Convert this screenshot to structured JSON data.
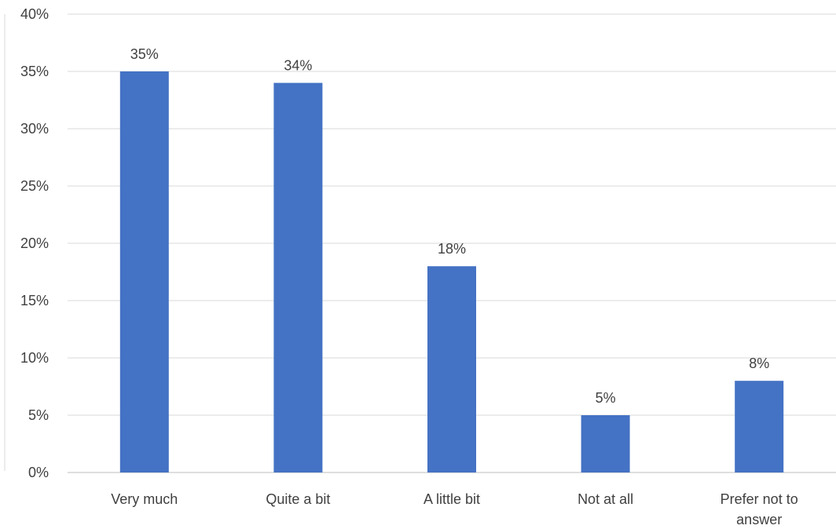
{
  "chart_data": {
    "type": "bar",
    "categories": [
      [
        "Very much"
      ],
      [
        "Quite a bit"
      ],
      [
        "A little bit"
      ],
      [
        "Not at all"
      ],
      [
        "Prefer not to",
        "answer"
      ]
    ],
    "values": [
      35,
      34,
      18,
      5,
      8
    ],
    "value_labels": [
      "35%",
      "34%",
      "18%",
      "5%",
      "8%"
    ],
    "y_ticks": [
      0,
      5,
      10,
      15,
      20,
      25,
      30,
      35,
      40
    ],
    "y_tick_labels": [
      "0%",
      "5%",
      "10%",
      "15%",
      "20%",
      "25%",
      "30%",
      "35%",
      "40%"
    ],
    "ylim": [
      0,
      40
    ],
    "unit": "%",
    "grid": true,
    "legend": "none",
    "title": "",
    "xlabel": "",
    "ylabel": "",
    "bar_color": "#4472c4"
  }
}
